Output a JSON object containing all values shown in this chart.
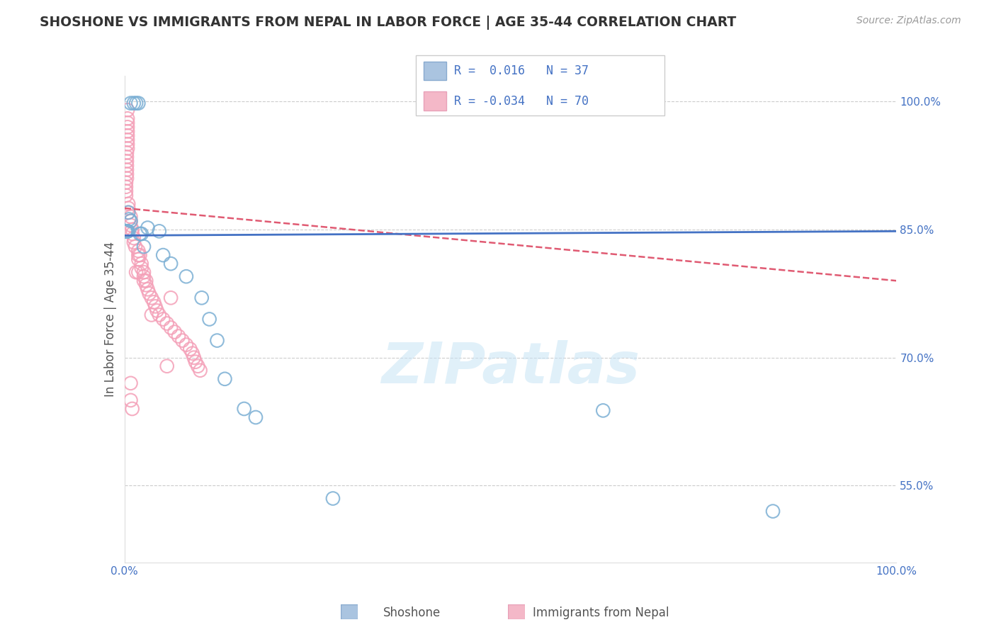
{
  "title": "SHOSHONE VS IMMIGRANTS FROM NEPAL IN LABOR FORCE | AGE 35-44 CORRELATION CHART",
  "source": "Source: ZipAtlas.com",
  "ylabel": "In Labor Force | Age 35-44",
  "xmin": 0.0,
  "xmax": 1.0,
  "ymin": 0.46,
  "ymax": 1.03,
  "yticks": [
    0.55,
    0.7,
    0.85,
    1.0
  ],
  "ytick_labels": [
    "55.0%",
    "70.0%",
    "85.0%",
    "100.0%"
  ],
  "shoshone_color": "#7bafd4",
  "nepal_color": "#f4a0b8",
  "shoshone_line_color": "#4472c4",
  "nepal_line_color": "#e05a72",
  "background_color": "#ffffff",
  "watermark": "ZIPatlas",
  "r_shoshone": 0.016,
  "n_shoshone": 37,
  "r_nepal": -0.034,
  "n_nepal": 70,
  "shoshone_x": [
    0.008,
    0.012,
    0.015,
    0.018,
    0.008,
    0.006,
    0.005,
    0.004,
    0.004,
    0.004,
    0.003,
    0.003,
    0.003,
    0.003,
    0.002,
    0.002,
    0.002,
    0.002,
    0.002,
    0.001,
    0.02,
    0.022,
    0.025,
    0.03,
    0.045,
    0.05,
    0.06,
    0.08,
    0.1,
    0.11,
    0.12,
    0.13,
    0.155,
    0.17,
    0.27,
    0.62,
    0.84
  ],
  "shoshone_y": [
    0.998,
    0.998,
    0.998,
    0.998,
    0.86,
    0.862,
    0.87,
    0.848,
    0.848,
    0.848,
    0.848,
    0.848,
    0.848,
    0.848,
    0.848,
    0.848,
    0.848,
    0.848,
    0.848,
    0.848,
    0.845,
    0.845,
    0.83,
    0.852,
    0.848,
    0.82,
    0.81,
    0.795,
    0.77,
    0.745,
    0.72,
    0.675,
    0.64,
    0.63,
    0.535,
    0.638,
    0.52
  ],
  "nepal_x": [
    0.004,
    0.004,
    0.004,
    0.004,
    0.004,
    0.004,
    0.004,
    0.004,
    0.004,
    0.003,
    0.003,
    0.003,
    0.003,
    0.003,
    0.003,
    0.003,
    0.002,
    0.002,
    0.002,
    0.002,
    0.005,
    0.005,
    0.005,
    0.008,
    0.008,
    0.008,
    0.01,
    0.01,
    0.012,
    0.012,
    0.014,
    0.018,
    0.018,
    0.018,
    0.022,
    0.022,
    0.025,
    0.025,
    0.028,
    0.028,
    0.03,
    0.032,
    0.035,
    0.038,
    0.04,
    0.042,
    0.045,
    0.05,
    0.055,
    0.06,
    0.065,
    0.07,
    0.075,
    0.08,
    0.085,
    0.088,
    0.09,
    0.092,
    0.095,
    0.098,
    0.06,
    0.035,
    0.055,
    0.02,
    0.015,
    0.025,
    0.018,
    0.008,
    0.008,
    0.01
  ],
  "nepal_y": [
    0.99,
    0.98,
    0.975,
    0.97,
    0.965,
    0.96,
    0.955,
    0.95,
    0.945,
    0.94,
    0.935,
    0.93,
    0.925,
    0.92,
    0.915,
    0.91,
    0.905,
    0.9,
    0.895,
    0.89,
    0.88,
    0.875,
    0.87,
    0.865,
    0.86,
    0.855,
    0.85,
    0.845,
    0.84,
    0.835,
    0.83,
    0.825,
    0.82,
    0.815,
    0.81,
    0.805,
    0.8,
    0.795,
    0.79,
    0.785,
    0.78,
    0.775,
    0.77,
    0.765,
    0.76,
    0.755,
    0.75,
    0.745,
    0.74,
    0.735,
    0.73,
    0.725,
    0.72,
    0.715,
    0.71,
    0.705,
    0.7,
    0.695,
    0.69,
    0.685,
    0.77,
    0.75,
    0.69,
    0.82,
    0.8,
    0.79,
    0.8,
    0.67,
    0.65,
    0.64
  ]
}
